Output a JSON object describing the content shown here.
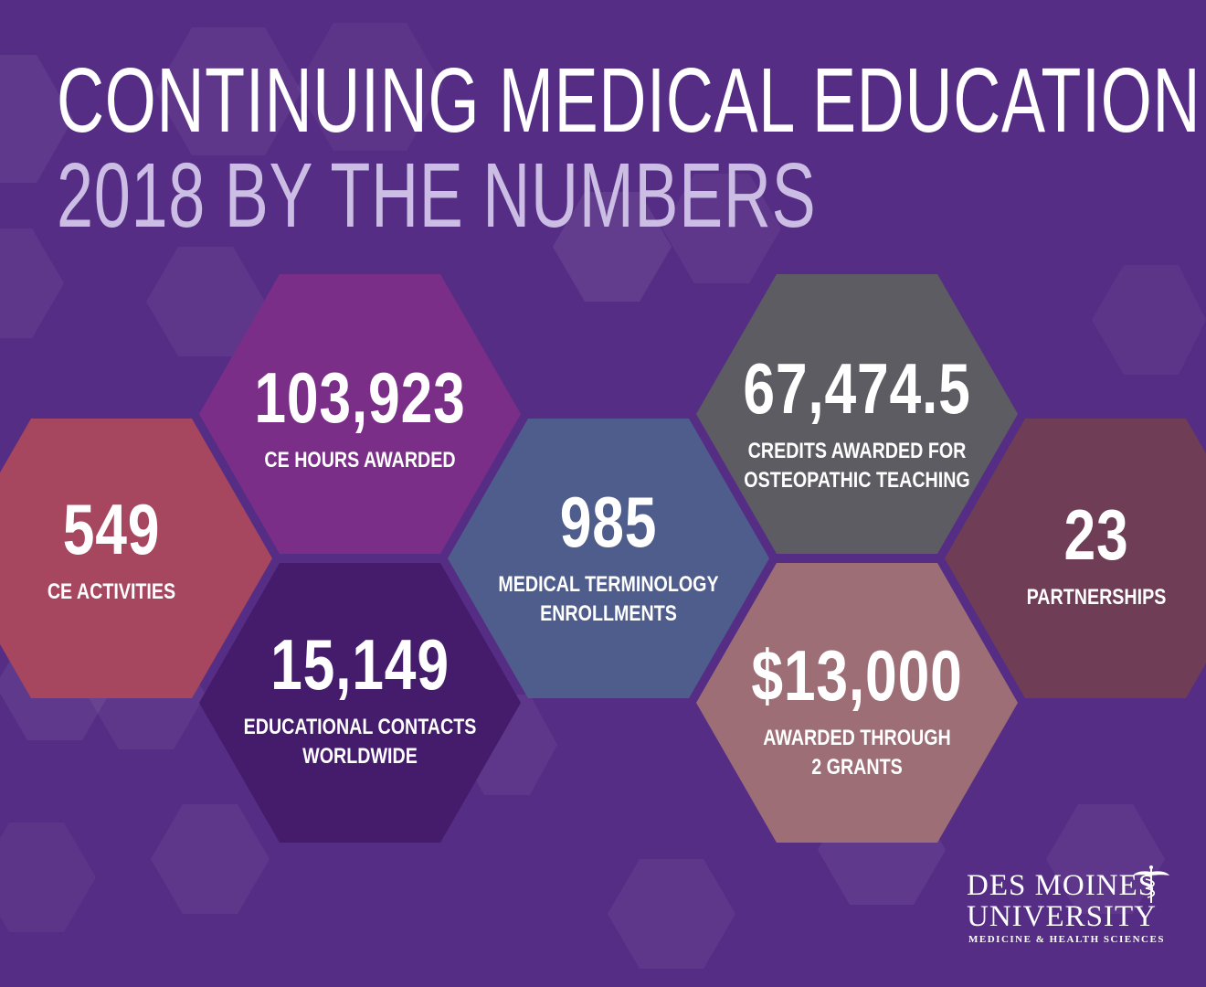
{
  "header": {
    "title_line1": "CONTINUING MEDICAL EDUCATION",
    "title_line2": "2018 BY THE NUMBERS"
  },
  "stats": [
    {
      "number": "549",
      "label_line1": "CE ACTIVITIES",
      "label_line2": "",
      "color": "#a6465f"
    },
    {
      "number": "103,923",
      "label_line1": "CE HOURS AWARDED",
      "label_line2": "",
      "color": "#7a2e88"
    },
    {
      "number": "15,149",
      "label_line1": "EDUCATIONAL CONTACTS",
      "label_line2": "WORLDWIDE",
      "color": "#441c6b"
    },
    {
      "number": "985",
      "label_line1": "MEDICAL TERMINOLOGY",
      "label_line2": "ENROLLMENTS",
      "color": "#4f5d8c"
    },
    {
      "number": "67,474.5",
      "label_line1": "CREDITS AWARDED FOR",
      "label_line2": "OSTEOPATHIC TEACHING",
      "color": "#5c5c62"
    },
    {
      "number": "$13,000",
      "label_line1": "AWARDED THROUGH",
      "label_line2": "2 GRANTS",
      "color": "#9d6e76"
    },
    {
      "number": "23",
      "label_line1": "PARTNERSHIPS",
      "label_line2": "",
      "color": "#6f3d55"
    }
  ],
  "logo": {
    "line1": "DES MOINES",
    "line2": "UNIVERSITY",
    "line3": "MEDICINE & HEALTH SCIENCES",
    "icon": "caduceus-icon"
  },
  "colors": {
    "background": "#562d84",
    "title_primary": "#ffffff",
    "title_secondary": "#cbbde3"
  }
}
